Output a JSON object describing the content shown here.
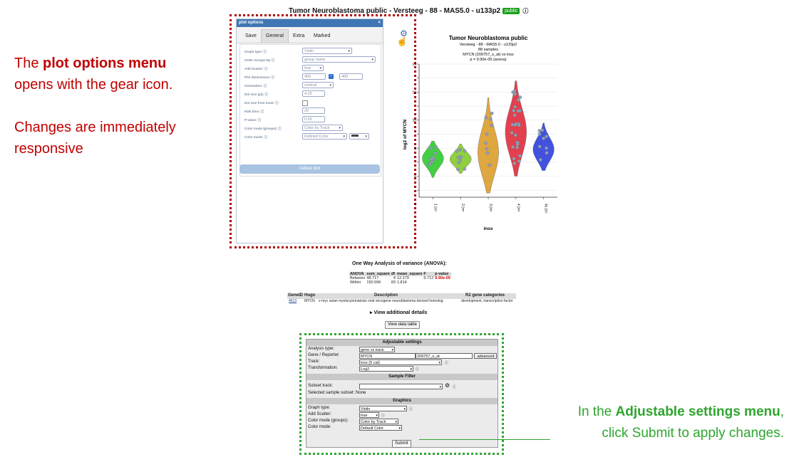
{
  "page": {
    "title": "Tumor Neuroblastoma public - Versteeg - 88 - MAS5.0 - u133p2",
    "badge": "public",
    "info_glyph": "ⓘ"
  },
  "annotations": {
    "left_line1_pre": "The ",
    "left_line1_bold": "plot options menu",
    "left_line2": "opens with the gear icon.",
    "left_line3": "Changes are immediately",
    "left_line4": "responsive",
    "right_line1_pre": "In the ",
    "right_line1_bold": "Adjustable settings menu",
    "right_line1_post": ",",
    "right_line2": "click Submit to apply changes."
  },
  "plot_options": {
    "header": "plot options",
    "close_glyph": "×",
    "tabs": [
      "Save",
      "General",
      "Extra",
      "Marked"
    ],
    "active_tab": "General",
    "rows": [
      {
        "label": "Graph type:",
        "value": "Violin"
      },
      {
        "label": "Order Groups By",
        "value": "group name"
      },
      {
        "label": "Add Scatter:",
        "value": "true"
      },
      {
        "label": "Plot dimensions:",
        "value": "400",
        "value2": "400"
      },
      {
        "label": "Orientation:",
        "value": "vertical"
      },
      {
        "label": "Dot size (pt):",
        "value": "4.25"
      },
      {
        "label": "Dot size from track:",
        "value": ""
      },
      {
        "label": "KDE bins:",
        "value": "20"
      },
      {
        "label": "P-value:",
        "value": "0.65"
      },
      {
        "label": "Color mode (groups):",
        "value": "Color by Track"
      },
      {
        "label": "Color mode:",
        "value": "Defined Color"
      }
    ],
    "redraw_label": "redraw plot"
  },
  "chart_data": {
    "type": "violin",
    "title": "Tumor Neuroblastoma public",
    "subtitle_lines": [
      "Versteeg - 88 - MAS5.0 - u133p2",
      "88 samples",
      "MYCN (209757_s_at) vs inss",
      "p = 9.90e-05 (anova)"
    ],
    "xlabel": "inss",
    "ylabel": "log2 of MYCN",
    "ytick_labels": [
      "4",
      "6",
      "8",
      "10",
      "12",
      "14"
    ],
    "ylim": [
      4.5,
      14
    ],
    "categories": [
      "1 (n=",
      "2 (n=",
      "3 (n=",
      "4 (n=",
      "4s (n="
    ],
    "series": [
      {
        "category": "1",
        "color": "#33cc33",
        "median": 7.3,
        "min": 5.9,
        "max": 8.5
      },
      {
        "category": "2",
        "color": "#88cc33",
        "median": 7.2,
        "min": 6.2,
        "max": 8.3
      },
      {
        "category": "3",
        "color": "#dda030",
        "median": 7.4,
        "min": 4.8,
        "max": 11.6
      },
      {
        "category": "4",
        "color": "#e03040",
        "median": 9.0,
        "min": 6.0,
        "max": 12.8
      },
      {
        "category": "4s",
        "color": "#3344dd",
        "median": 7.8,
        "min": 6.4,
        "max": 9.8
      }
    ]
  },
  "anova": {
    "title": "One Way Analysis of variance (ANOVA):",
    "headers": [
      "ANOVA",
      "sum_square",
      "df",
      "mean_square",
      "F",
      "p-value"
    ],
    "rows": [
      [
        "Between",
        "48.717",
        "4",
        "12.179",
        "6.712",
        "9.90e-05"
      ],
      [
        "Within",
        "150.596",
        "83",
        "1.814",
        "",
        ""
      ]
    ]
  },
  "gene_table": {
    "headers": [
      "GeneID",
      "Hugo",
      "Description",
      "R2 gene categories"
    ],
    "row": [
      "4613",
      "MYCN",
      "v-myc avian myelocytomatosis viral oncogene neuroblastoma derived homolog",
      "development, transcription factor"
    ]
  },
  "view_details": "▸ View additional details",
  "view_data_table": "View data table",
  "adjustable": {
    "title": "Adjustable settings",
    "analysis_type_label": "Analysis type:",
    "analysis_type_value": "gene vs track",
    "gene_label": "Gene / Reporter:",
    "gene_value": "MYCN",
    "reporter_value": "209757_s_at",
    "advanced_label": "advanced",
    "track_label": "Track:",
    "track_value": "inss (5 cat)",
    "transformation_label": "Transformation:",
    "transformation_value": "Log2",
    "sample_filter_title": "Sample Filter",
    "subset_label": "Subset track:",
    "subset_value": "",
    "selected_subset": "Selected sample subset: None",
    "graphics_title": "Graphics",
    "graph_type_label": "Graph type:",
    "graph_type_value": "Violin",
    "add_scatter_label": "Add Scatter:",
    "add_scatter_value": "true",
    "color_groups_label": "Color mode (groups):",
    "color_groups_value": "Color by Track",
    "color_mode_label": "Color mode:",
    "color_mode_value": "Default Color",
    "submit_label": "Submit"
  }
}
